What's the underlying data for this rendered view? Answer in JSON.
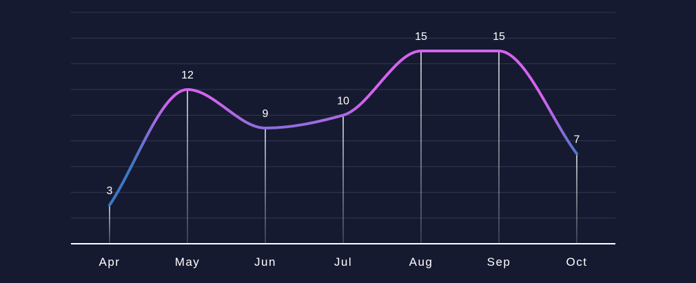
{
  "chart_data": {
    "type": "line",
    "categories": [
      "Apr",
      "May",
      "Jun",
      "Jul",
      "Aug",
      "Sep",
      "Oct"
    ],
    "values": [
      3,
      12,
      9,
      10,
      15,
      15,
      7
    ],
    "ylim": [
      0,
      18
    ],
    "grid": true,
    "smooth": true,
    "colors": {
      "background": "#161a30",
      "grid": "#343850",
      "axis": "#ffffff",
      "drop_line": "#ffffff",
      "line_low": "#3d78c6",
      "line_high": "#d463f0"
    }
  }
}
